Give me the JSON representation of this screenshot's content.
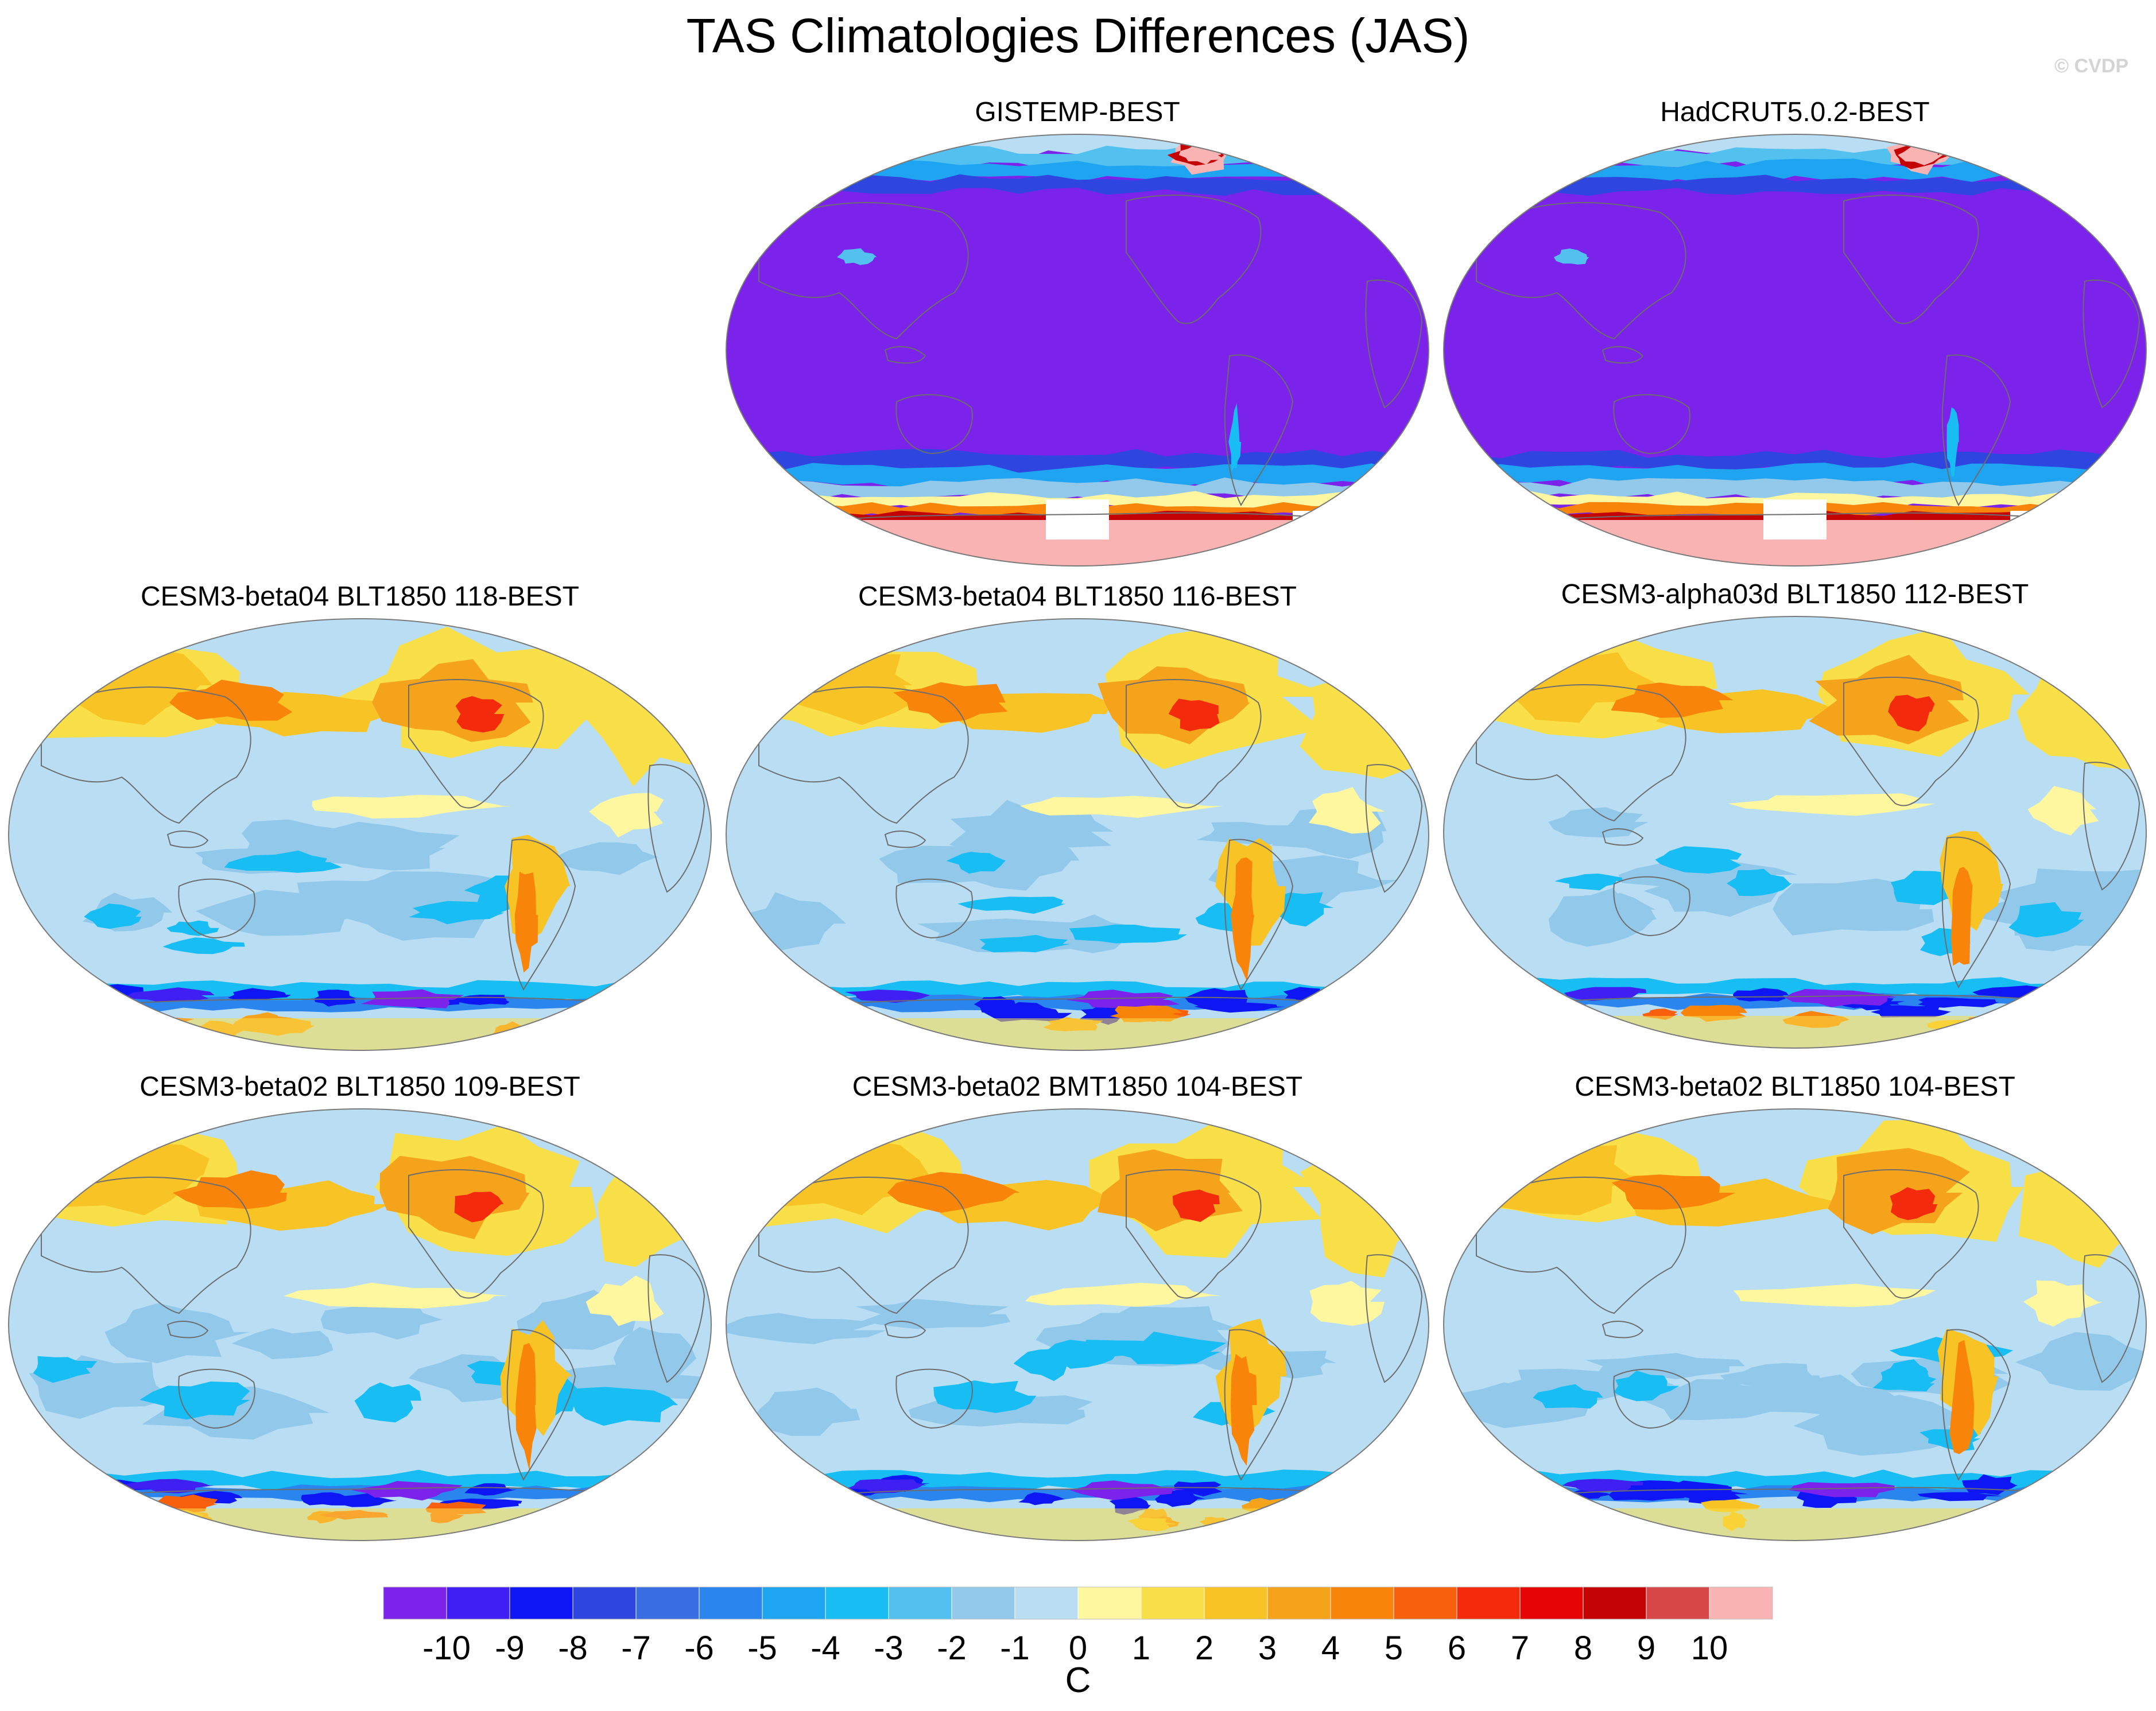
{
  "title": "TAS Climatologies Differences (JAS)",
  "credit": "© CVDP",
  "panels": [
    {
      "title": "GISTEMP-BEST",
      "style": "obs",
      "seed": 3
    },
    {
      "title": "HadCRUT5.0.2-BEST",
      "style": "obs",
      "seed": 7
    },
    {
      "title": "CESM3-beta04 BLT1850 118-BEST",
      "style": "model",
      "seed": 11
    },
    {
      "title": "CESM3-beta04 BLT1850 116-BEST",
      "style": "model",
      "seed": 17
    },
    {
      "title": "CESM3-alpha03d BLT1850 112-BEST",
      "style": "model",
      "seed": 23
    },
    {
      "title": "CESM3-beta02 BLT1850 109-BEST",
      "style": "model",
      "seed": 29
    },
    {
      "title": "CESM3-beta02 BMT1850 104-BEST",
      "style": "model",
      "seed": 31
    },
    {
      "title": "CESM3-beta02 BLT1850 104-BEST",
      "style": "model",
      "seed": 37
    }
  ],
  "colorbar": {
    "unit": "C",
    "ticks": [
      "-10",
      "-9",
      "-8",
      "-7",
      "-6",
      "-5",
      "-4",
      "-3",
      "-2",
      "-1",
      "0",
      "1",
      "2",
      "3",
      "4",
      "5",
      "6",
      "7",
      "8",
      "9",
      "10"
    ],
    "colors": [
      "#7b22eb",
      "#3f1ff2",
      "#0f16f4",
      "#2e46df",
      "#3a6fe3",
      "#2a86ee",
      "#1fa4f2",
      "#17bdf3",
      "#52c1f0",
      "#92c9eb",
      "#b9def4",
      "#fff6a0",
      "#f9df48",
      "#f8c324",
      "#f6a31c",
      "#f8850a",
      "#f8600e",
      "#f42a0c",
      "#e50505",
      "#c40404",
      "#d84747",
      "#f9b3b3"
    ]
  }
}
